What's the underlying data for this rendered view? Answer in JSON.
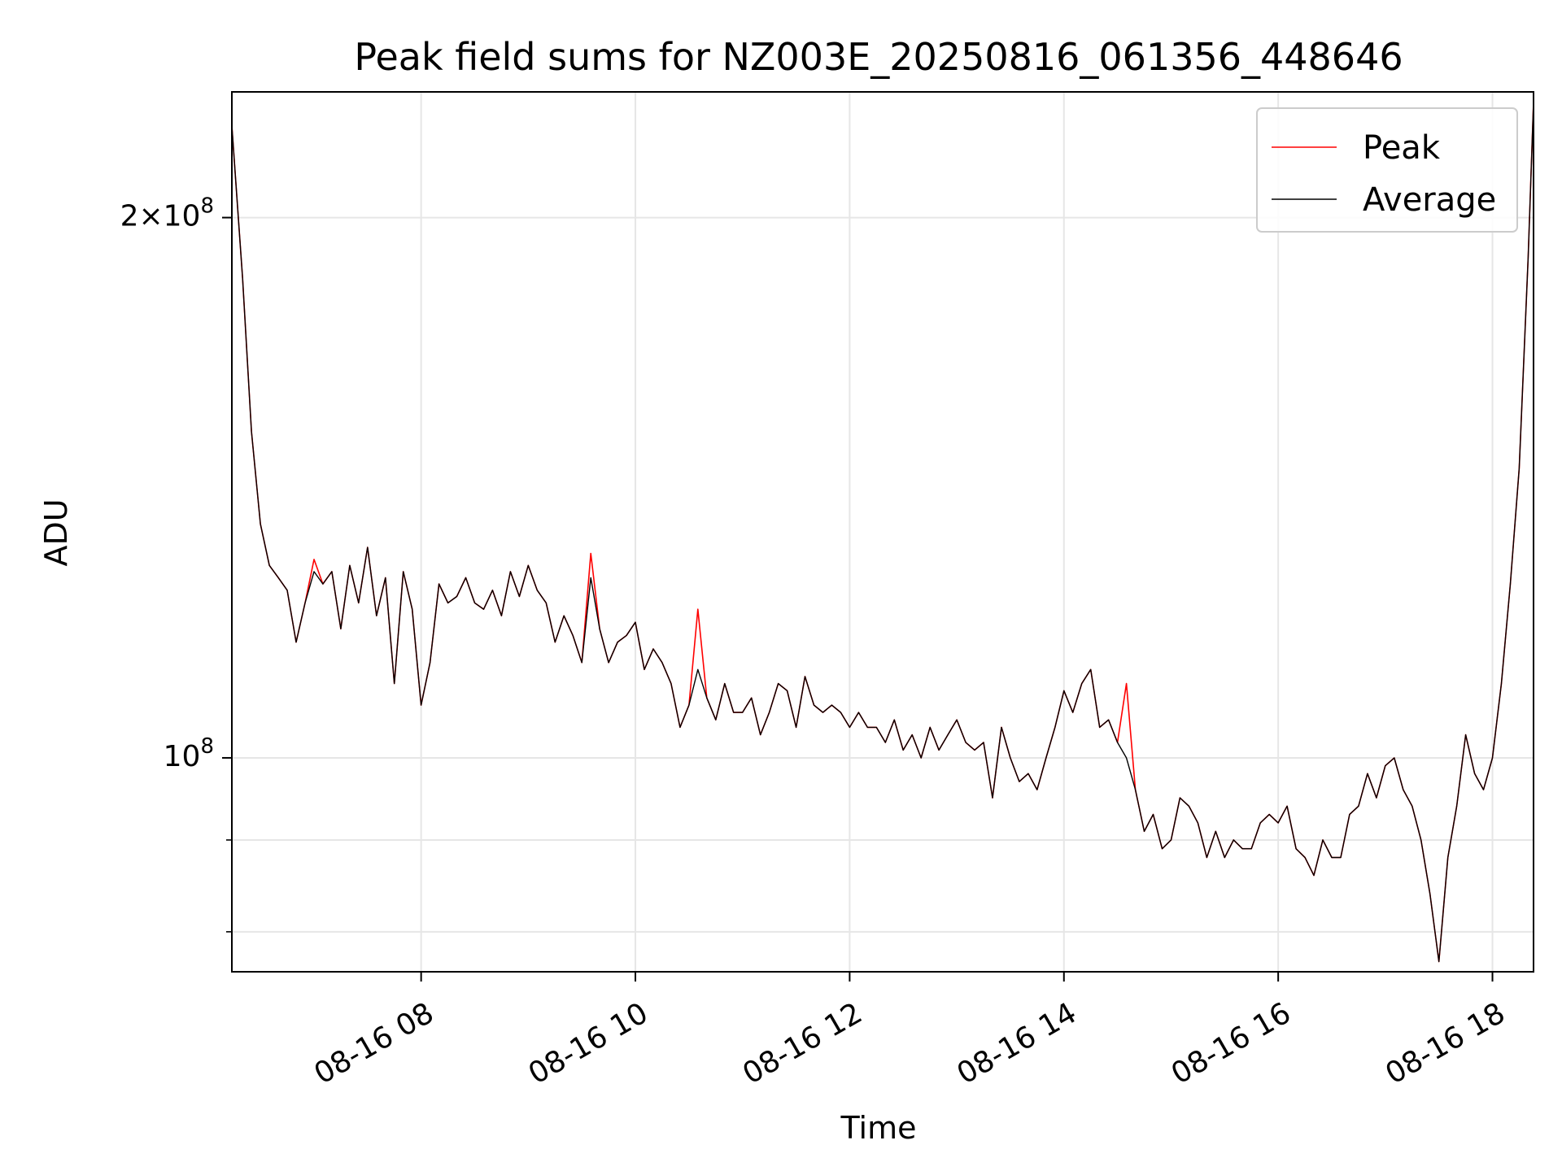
{
  "chart_data": {
    "type": "line",
    "title": "Peak field sums for NZ003E_20250816_061356_448646",
    "xlabel": "Time",
    "ylabel": "ADU",
    "yscale": "log",
    "grid": true,
    "legend_position": "top-right",
    "xlim": [
      "2025-08-16 06:14",
      "2025-08-16 18:23"
    ],
    "ylim": [
      76000000,
      235000000
    ],
    "x_ticks": [
      {
        "value": "2025-08-16 08:00",
        "label": "08-16 08"
      },
      {
        "value": "2025-08-16 10:00",
        "label": "08-16 10"
      },
      {
        "value": "2025-08-16 12:00",
        "label": "08-16 12"
      },
      {
        "value": "2025-08-16 14:00",
        "label": "08-16 14"
      },
      {
        "value": "2025-08-16 16:00",
        "label": "08-16 16"
      },
      {
        "value": "2025-08-16 18:00",
        "label": "08-16 18"
      }
    ],
    "y_major_ticks": [
      {
        "value": 100000000,
        "label": "10^8"
      },
      {
        "value": 200000000,
        "label": "2×10^8"
      }
    ],
    "y_minor_ticks": [
      80000000,
      90000000
    ],
    "x": [
      "06:14",
      "06:20",
      "06:25",
      "06:30",
      "06:35",
      "06:40",
      "06:45",
      "06:50",
      "06:55",
      "07:00",
      "07:05",
      "07:10",
      "07:15",
      "07:20",
      "07:25",
      "07:30",
      "07:35",
      "07:40",
      "07:45",
      "07:50",
      "07:55",
      "08:00",
      "08:05",
      "08:10",
      "08:15",
      "08:20",
      "08:25",
      "08:30",
      "08:35",
      "08:40",
      "08:45",
      "08:50",
      "08:55",
      "09:00",
      "09:05",
      "09:10",
      "09:15",
      "09:20",
      "09:25",
      "09:30",
      "09:35",
      "09:40",
      "09:45",
      "09:50",
      "09:55",
      "10:00",
      "10:05",
      "10:10",
      "10:15",
      "10:20",
      "10:25",
      "10:30",
      "10:35",
      "10:40",
      "10:45",
      "10:50",
      "10:55",
      "11:00",
      "11:05",
      "11:10",
      "11:15",
      "11:20",
      "11:25",
      "11:30",
      "11:35",
      "11:40",
      "11:45",
      "11:50",
      "11:55",
      "12:00",
      "12:05",
      "12:10",
      "12:15",
      "12:20",
      "12:25",
      "12:30",
      "12:35",
      "12:40",
      "12:45",
      "12:50",
      "12:55",
      "13:00",
      "13:05",
      "13:10",
      "13:15",
      "13:20",
      "13:25",
      "13:30",
      "13:35",
      "13:40",
      "13:45",
      "13:50",
      "13:55",
      "14:00",
      "14:05",
      "14:10",
      "14:15",
      "14:20",
      "14:25",
      "14:30",
      "14:35",
      "14:40",
      "14:45",
      "14:50",
      "14:55",
      "15:00",
      "15:05",
      "15:10",
      "15:15",
      "15:20",
      "15:25",
      "15:30",
      "15:35",
      "15:40",
      "15:45",
      "15:50",
      "15:55",
      "16:00",
      "16:05",
      "16:10",
      "16:15",
      "16:20",
      "16:25",
      "16:30",
      "16:35",
      "16:40",
      "16:45",
      "16:50",
      "16:55",
      "17:00",
      "17:05",
      "17:10",
      "17:15",
      "17:20",
      "17:25",
      "17:30",
      "17:35",
      "17:40",
      "17:45",
      "17:50",
      "17:55",
      "18:00",
      "18:05",
      "18:10",
      "18:15",
      "18:20",
      "18:23"
    ],
    "series": [
      {
        "name": "Peak",
        "color": "#ff0000",
        "values": [
          225000000,
          185000000,
          152000000,
          135000000,
          128000000,
          126000000,
          124000000,
          116000000,
          122000000,
          129000000,
          125000000,
          127000000,
          118000000,
          128000000,
          122000000,
          131000000,
          120000000,
          126000000,
          110000000,
          127000000,
          121000000,
          107000000,
          113000000,
          125000000,
          122000000,
          123000000,
          126000000,
          122000000,
          121000000,
          124000000,
          120000000,
          127000000,
          123000000,
          128000000,
          124000000,
          122000000,
          116000000,
          120000000,
          117000000,
          113000000,
          130000000,
          118000000,
          113000000,
          116000000,
          117000000,
          119000000,
          112000000,
          115000000,
          113000000,
          110000000,
          104000000,
          107000000,
          121000000,
          108000000,
          105000000,
          110000000,
          106000000,
          106000000,
          108000000,
          103000000,
          106000000,
          110000000,
          109000000,
          104000000,
          111000000,
          107000000,
          106000000,
          107000000,
          106000000,
          104000000,
          106000000,
          104000000,
          104000000,
          102000000,
          105000000,
          101000000,
          103000000,
          100000000,
          104000000,
          101000000,
          103000000,
          105000000,
          102000000,
          101000000,
          102000000,
          95000000,
          104000000,
          100000000,
          97000000,
          98000000,
          96000000,
          100000000,
          104000000,
          109000000,
          106000000,
          110000000,
          112000000,
          104000000,
          105000000,
          102000000,
          110000000,
          96000000,
          91000000,
          93000000,
          89000000,
          90000000,
          95000000,
          94000000,
          92000000,
          88000000,
          91000000,
          88000000,
          90000000,
          89000000,
          89000000,
          92000000,
          93000000,
          92000000,
          94000000,
          89000000,
          88000000,
          86000000,
          90000000,
          88000000,
          88000000,
          93000000,
          94000000,
          98000000,
          95000000,
          99000000,
          100000000,
          96000000,
          94000000,
          90000000,
          84000000,
          77000000,
          88000000,
          94000000,
          103000000,
          98000000,
          96000000,
          100000000,
          110000000,
          125000000,
          145000000,
          190000000,
          232000000
        ]
      },
      {
        "name": "Average",
        "color": "#000000",
        "values": [
          225000000,
          185000000,
          152000000,
          135000000,
          128000000,
          126000000,
          124000000,
          116000000,
          122000000,
          127000000,
          125000000,
          127000000,
          118000000,
          128000000,
          122000000,
          131000000,
          120000000,
          126000000,
          110000000,
          127000000,
          121000000,
          107000000,
          113000000,
          125000000,
          122000000,
          123000000,
          126000000,
          122000000,
          121000000,
          124000000,
          120000000,
          127000000,
          123000000,
          128000000,
          124000000,
          122000000,
          116000000,
          120000000,
          117000000,
          113000000,
          126000000,
          118000000,
          113000000,
          116000000,
          117000000,
          119000000,
          112000000,
          115000000,
          113000000,
          110000000,
          104000000,
          107000000,
          112000000,
          108000000,
          105000000,
          110000000,
          106000000,
          106000000,
          108000000,
          103000000,
          106000000,
          110000000,
          109000000,
          104000000,
          111000000,
          107000000,
          106000000,
          107000000,
          106000000,
          104000000,
          106000000,
          104000000,
          104000000,
          102000000,
          105000000,
          101000000,
          103000000,
          100000000,
          104000000,
          101000000,
          103000000,
          105000000,
          102000000,
          101000000,
          102000000,
          95000000,
          104000000,
          100000000,
          97000000,
          98000000,
          96000000,
          100000000,
          104000000,
          109000000,
          106000000,
          110000000,
          112000000,
          104000000,
          105000000,
          102000000,
          100000000,
          96000000,
          91000000,
          93000000,
          89000000,
          90000000,
          95000000,
          94000000,
          92000000,
          88000000,
          91000000,
          88000000,
          90000000,
          89000000,
          89000000,
          92000000,
          93000000,
          92000000,
          94000000,
          89000000,
          88000000,
          86000000,
          90000000,
          88000000,
          88000000,
          93000000,
          94000000,
          98000000,
          95000000,
          99000000,
          100000000,
          96000000,
          94000000,
          90000000,
          84000000,
          77000000,
          88000000,
          94000000,
          103000000,
          98000000,
          96000000,
          100000000,
          110000000,
          125000000,
          145000000,
          190000000,
          232000000
        ]
      }
    ]
  }
}
